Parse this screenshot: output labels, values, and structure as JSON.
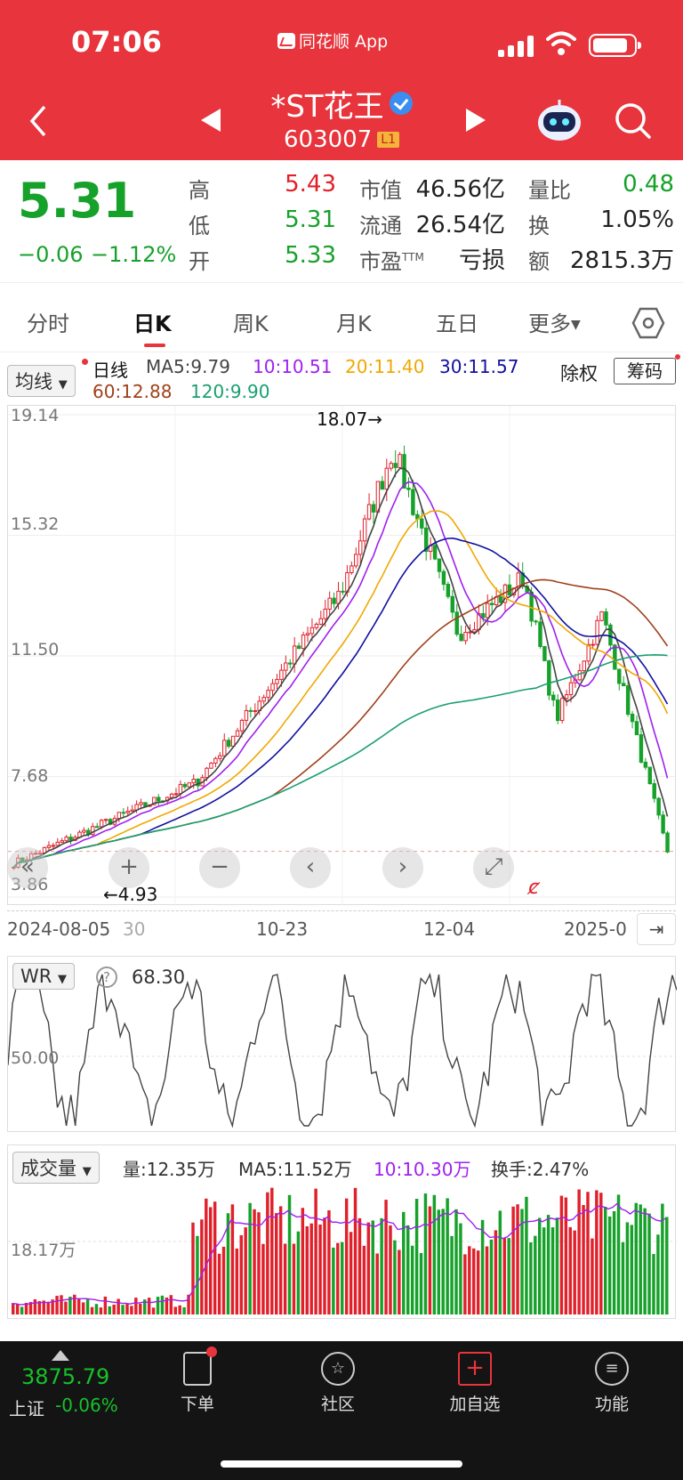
{
  "status_bar": {
    "time": "07:06",
    "app_name": "同花顺 App"
  },
  "header": {
    "stock_name": "*ST花王",
    "stock_code": "603007",
    "level_badge": "L1"
  },
  "quote": {
    "price": "5.31",
    "change": "−0.06",
    "change_pct": "−1.12%",
    "high_label": "高",
    "high": "5.43",
    "low_label": "低",
    "low": "5.31",
    "open_label": "开",
    "open": "5.33",
    "mktcap_label": "市值",
    "mktcap": "46.56亿",
    "float_label": "流通",
    "float_cap": "26.54亿",
    "pe_label": "市盈",
    "pe_sup": "TTM",
    "pe": "亏损",
    "volratio_label": "量比",
    "volratio": "0.48",
    "turnover_label": "换",
    "turnover": "1.05%",
    "amount_label": "额",
    "amount": "2815.3万"
  },
  "tabs": [
    "分时",
    "日K",
    "周K",
    "月K",
    "五日",
    "更多"
  ],
  "kline": {
    "ma_selector": "均线",
    "period_label": "日线",
    "ma5": "MA5:9.79",
    "ma10": "10:10.51",
    "ma20": "20:11.40",
    "ma30": "30:11.57",
    "ma60": "60:12.88",
    "ma120": "120:9.90",
    "chuquan": "除权",
    "chouma": "筹码",
    "y_labels": [
      "19.14",
      "15.32",
      "11.50",
      "7.68",
      "3.86"
    ],
    "x_labels": [
      "2024-08-05",
      "30",
      "10-23",
      "12-04",
      "2025-0"
    ],
    "max_marker": "18.07→",
    "min_marker": "←4.93",
    "colors": {
      "ma5": "#444444",
      "ma10": "#a020f0",
      "ma20": "#f0a800",
      "ma30": "#1010a0",
      "ma60": "#a0401a",
      "ma120": "#1aa070"
    }
  },
  "wr": {
    "selector": "WR",
    "value": "68.30",
    "level": "50.00"
  },
  "volume": {
    "selector": "成交量",
    "vol": "量:12.35万",
    "ma5": "MA5:11.52万",
    "ma10": "10:10.30万",
    "turnover": "换手:2.47%",
    "level": "18.17万"
  },
  "footer": {
    "index_value": "3875.79",
    "index_name": "上证",
    "index_change": "-0.06%",
    "buttons": [
      "下单",
      "社区",
      "加自选",
      "功能"
    ]
  },
  "chart_data": {
    "type": "candlestick",
    "title": "",
    "y_range": [
      3.86,
      19.14
    ],
    "x_labels": [
      "2024-08-05",
      "10-23",
      "12-04",
      "2025-0"
    ],
    "points": [
      {
        "x": 0,
        "price": 4.93,
        "label": "low"
      },
      {
        "x": 0.28,
        "price": 7.5
      },
      {
        "x": 0.5,
        "price": 13.5
      },
      {
        "x": 0.58,
        "price": 18.07,
        "label": "high"
      },
      {
        "x": 0.68,
        "price": 12.2
      },
      {
        "x": 0.78,
        "price": 14.0
      },
      {
        "x": 0.83,
        "price": 9.5
      },
      {
        "x": 0.9,
        "price": 12.8
      },
      {
        "x": 1.0,
        "price": 5.31
      }
    ]
  }
}
